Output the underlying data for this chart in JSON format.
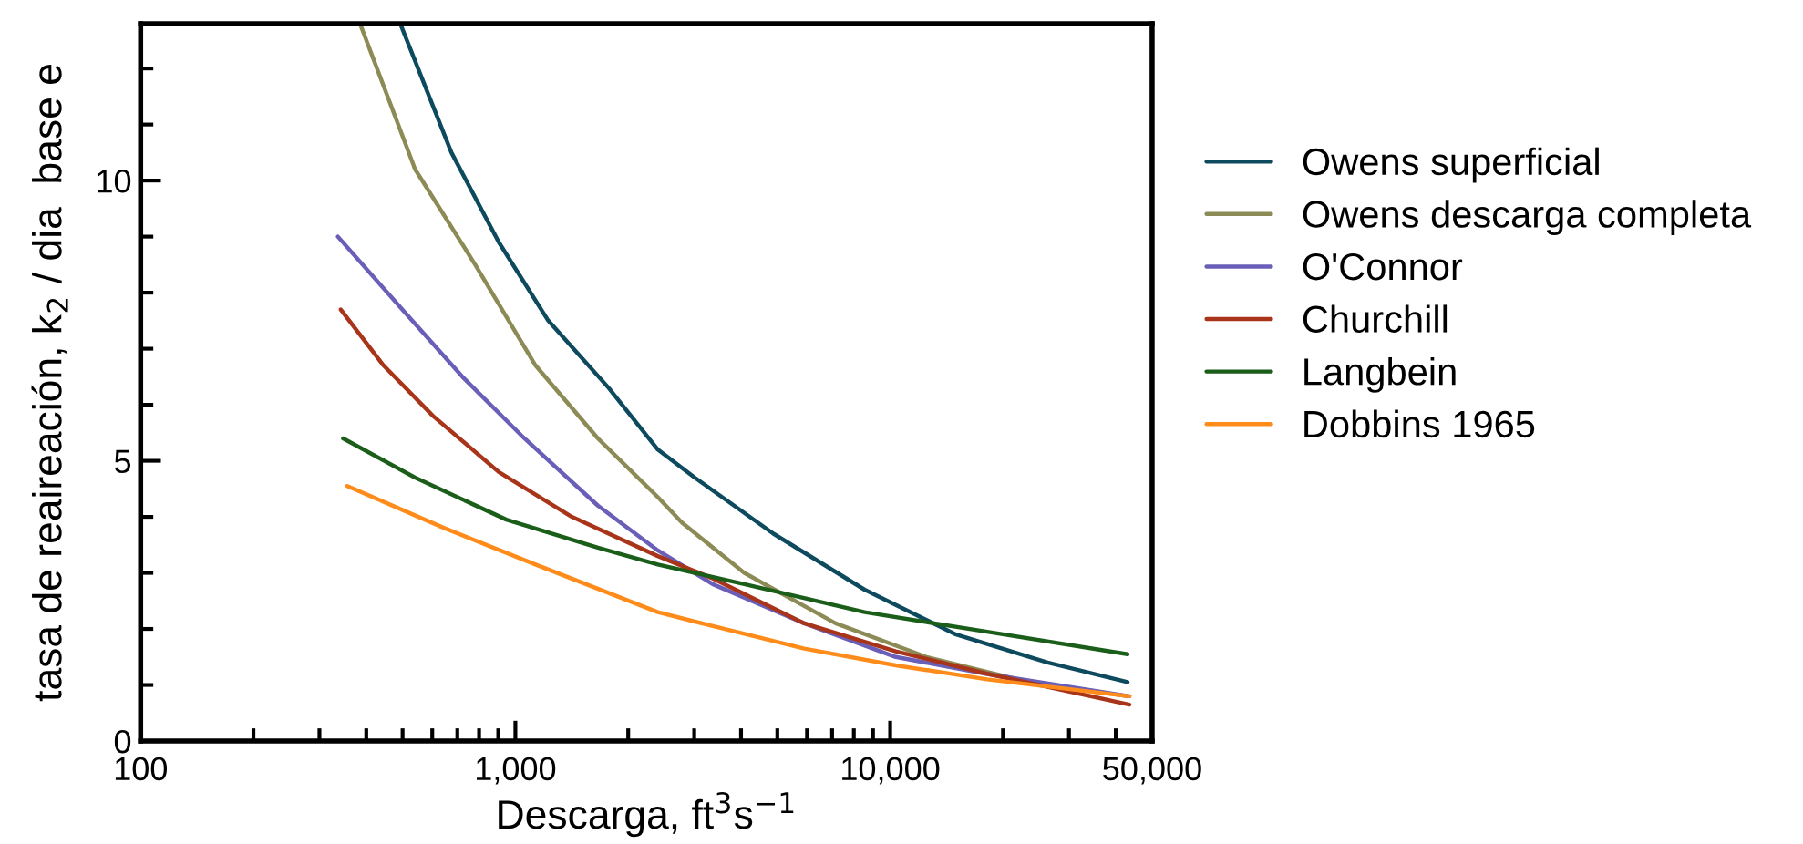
{
  "chart_data": {
    "type": "line",
    "xlabel": "Descarga, ft$^{3}$s$^{−1}$",
    "ylabel": "tasa de reaireación, k$_{2}$ / dia  base e",
    "log": "x",
    "xlim": [
      100,
      50000
    ],
    "ylim": [
      0,
      12.8
    ],
    "xticks": [
      {
        "value": 100,
        "label": "100"
      },
      {
        "value": 200,
        "label": null
      },
      {
        "value": 300,
        "label": null
      },
      {
        "value": 400,
        "label": null
      },
      {
        "value": 500,
        "label": null
      },
      {
        "value": 600,
        "label": null
      },
      {
        "value": 700,
        "label": null
      },
      {
        "value": 800,
        "label": null
      },
      {
        "value": 900,
        "label": null
      },
      {
        "value": 1000,
        "label": "1,000"
      },
      {
        "value": 2000,
        "label": null
      },
      {
        "value": 3000,
        "label": null
      },
      {
        "value": 4000,
        "label": null
      },
      {
        "value": 5000,
        "label": null
      },
      {
        "value": 6000,
        "label": null
      },
      {
        "value": 7000,
        "label": null
      },
      {
        "value": 8000,
        "label": null
      },
      {
        "value": 9000,
        "label": null
      },
      {
        "value": 10000,
        "label": "10,000"
      },
      {
        "value": 20000,
        "label": null
      },
      {
        "value": 30000,
        "label": null
      },
      {
        "value": 40000,
        "label": null
      },
      {
        "value": 50000,
        "label": "50,000"
      }
    ],
    "yticks": [
      0,
      {
        "value": 1,
        "label": null
      },
      {
        "value": 2,
        "label": null
      },
      {
        "value": 3,
        "label": null
      },
      {
        "value": 4,
        "label": null
      },
      5,
      {
        "value": 6,
        "label": null
      },
      {
        "value": 7,
        "label": null
      },
      {
        "value": 8,
        "label": null
      },
      {
        "value": 9,
        "label": null
      },
      10,
      {
        "value": 11,
        "label": null
      },
      {
        "value": 12,
        "label": null
      }
    ],
    "grid": false,
    "legend": "right",
    "series": [
      {
        "name": "Owens superficial",
        "color": "#0d4a5e",
        "x": [
          493,
          675,
          903,
          1224,
          1774,
          2400,
          3010,
          4880,
          8550,
          15000,
          26300,
          43000
        ],
        "values": [
          12.8,
          10.5,
          8.9,
          7.5,
          6.3,
          5.2,
          4.7,
          3.7,
          2.7,
          1.9,
          1.4,
          1.05
        ]
      },
      {
        "name": "Owens descarga completa",
        "color": "#8c8a55",
        "x": [
          385,
          540,
          781,
          1132,
          1660,
          2400,
          2780,
          4080,
          7150,
          12500,
          21900,
          43000
        ],
        "values": [
          12.8,
          10.2,
          8.5,
          6.7,
          5.4,
          4.35,
          3.9,
          3.0,
          2.1,
          1.5,
          1.1,
          0.8
        ]
      },
      {
        "name": "O'Connor",
        "color": "#6a5fb8",
        "x": [
          336,
          499,
          722,
          1057,
          1660,
          2400,
          3360,
          5900,
          10350,
          18000,
          43500
        ],
        "values": [
          9.0,
          7.7,
          6.5,
          5.4,
          4.2,
          3.4,
          2.8,
          2.1,
          1.5,
          1.2,
          0.8
        ]
      },
      {
        "name": "Churchill",
        "color": "#a8341a",
        "x": [
          342,
          445,
          603,
          903,
          1415,
          2400,
          3365,
          5900,
          10350,
          18150,
          43500
        ],
        "values": [
          7.7,
          6.7,
          5.8,
          4.8,
          4.0,
          3.3,
          2.9,
          2.1,
          1.6,
          1.2,
          0.65
        ]
      },
      {
        "name": "Langbein",
        "color": "#1a5e1a",
        "x": [
          347,
          540,
          946,
          1660,
          2400,
          4080,
          8550,
          18150,
          43000
        ],
        "values": [
          5.4,
          4.7,
          3.95,
          3.45,
          3.15,
          2.8,
          2.3,
          1.95,
          1.55
        ]
      },
      {
        "name": "Dobbins 1965",
        "color": "#ff8c1a",
        "x": [
          356,
          646,
          1132,
          2400,
          3365,
          5900,
          10350,
          18150,
          43500
        ],
        "values": [
          4.55,
          3.8,
          3.15,
          2.3,
          2.05,
          1.65,
          1.35,
          1.1,
          0.8
        ]
      }
    ]
  }
}
